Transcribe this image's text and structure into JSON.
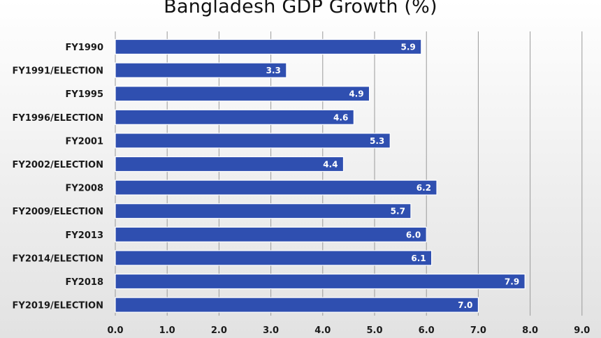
{
  "chart_data": {
    "type": "bar",
    "orientation": "horizontal",
    "title": "Bangladesh GDP Growth (%)",
    "categories": [
      "FY1990",
      "FY1991/ELECTION",
      "FY1995",
      "FY1996/ELECTION",
      "FY2001",
      "FY2002/ELECTION",
      "FY2008",
      "FY2009/ELECTION",
      "FY2013",
      "FY2014/ELECTION",
      "FY2018",
      "FY2019/ELECTION"
    ],
    "values": [
      5.9,
      3.3,
      4.9,
      4.6,
      5.3,
      4.4,
      6.2,
      5.7,
      6.0,
      6.1,
      7.9,
      7.0
    ],
    "value_labels": [
      "5.9",
      "3.3",
      "4.9",
      "4.6",
      "5.3",
      "4.4",
      "6.2",
      "5.7",
      "6.0",
      "6.1",
      "7.9",
      "7.0"
    ],
    "xlim": [
      0,
      9
    ],
    "xticks": [
      0,
      1,
      2,
      3,
      4,
      5,
      6,
      7,
      8,
      9
    ],
    "xtick_labels": [
      "0.0",
      "1.0",
      "2.0",
      "3.0",
      "4.0",
      "5.0",
      "6.0",
      "7.0",
      "8.0",
      "9.0"
    ],
    "grid": true,
    "legend": "none",
    "bar_color": "#2f4fb0",
    "grid_color": "#9a9a9a"
  }
}
